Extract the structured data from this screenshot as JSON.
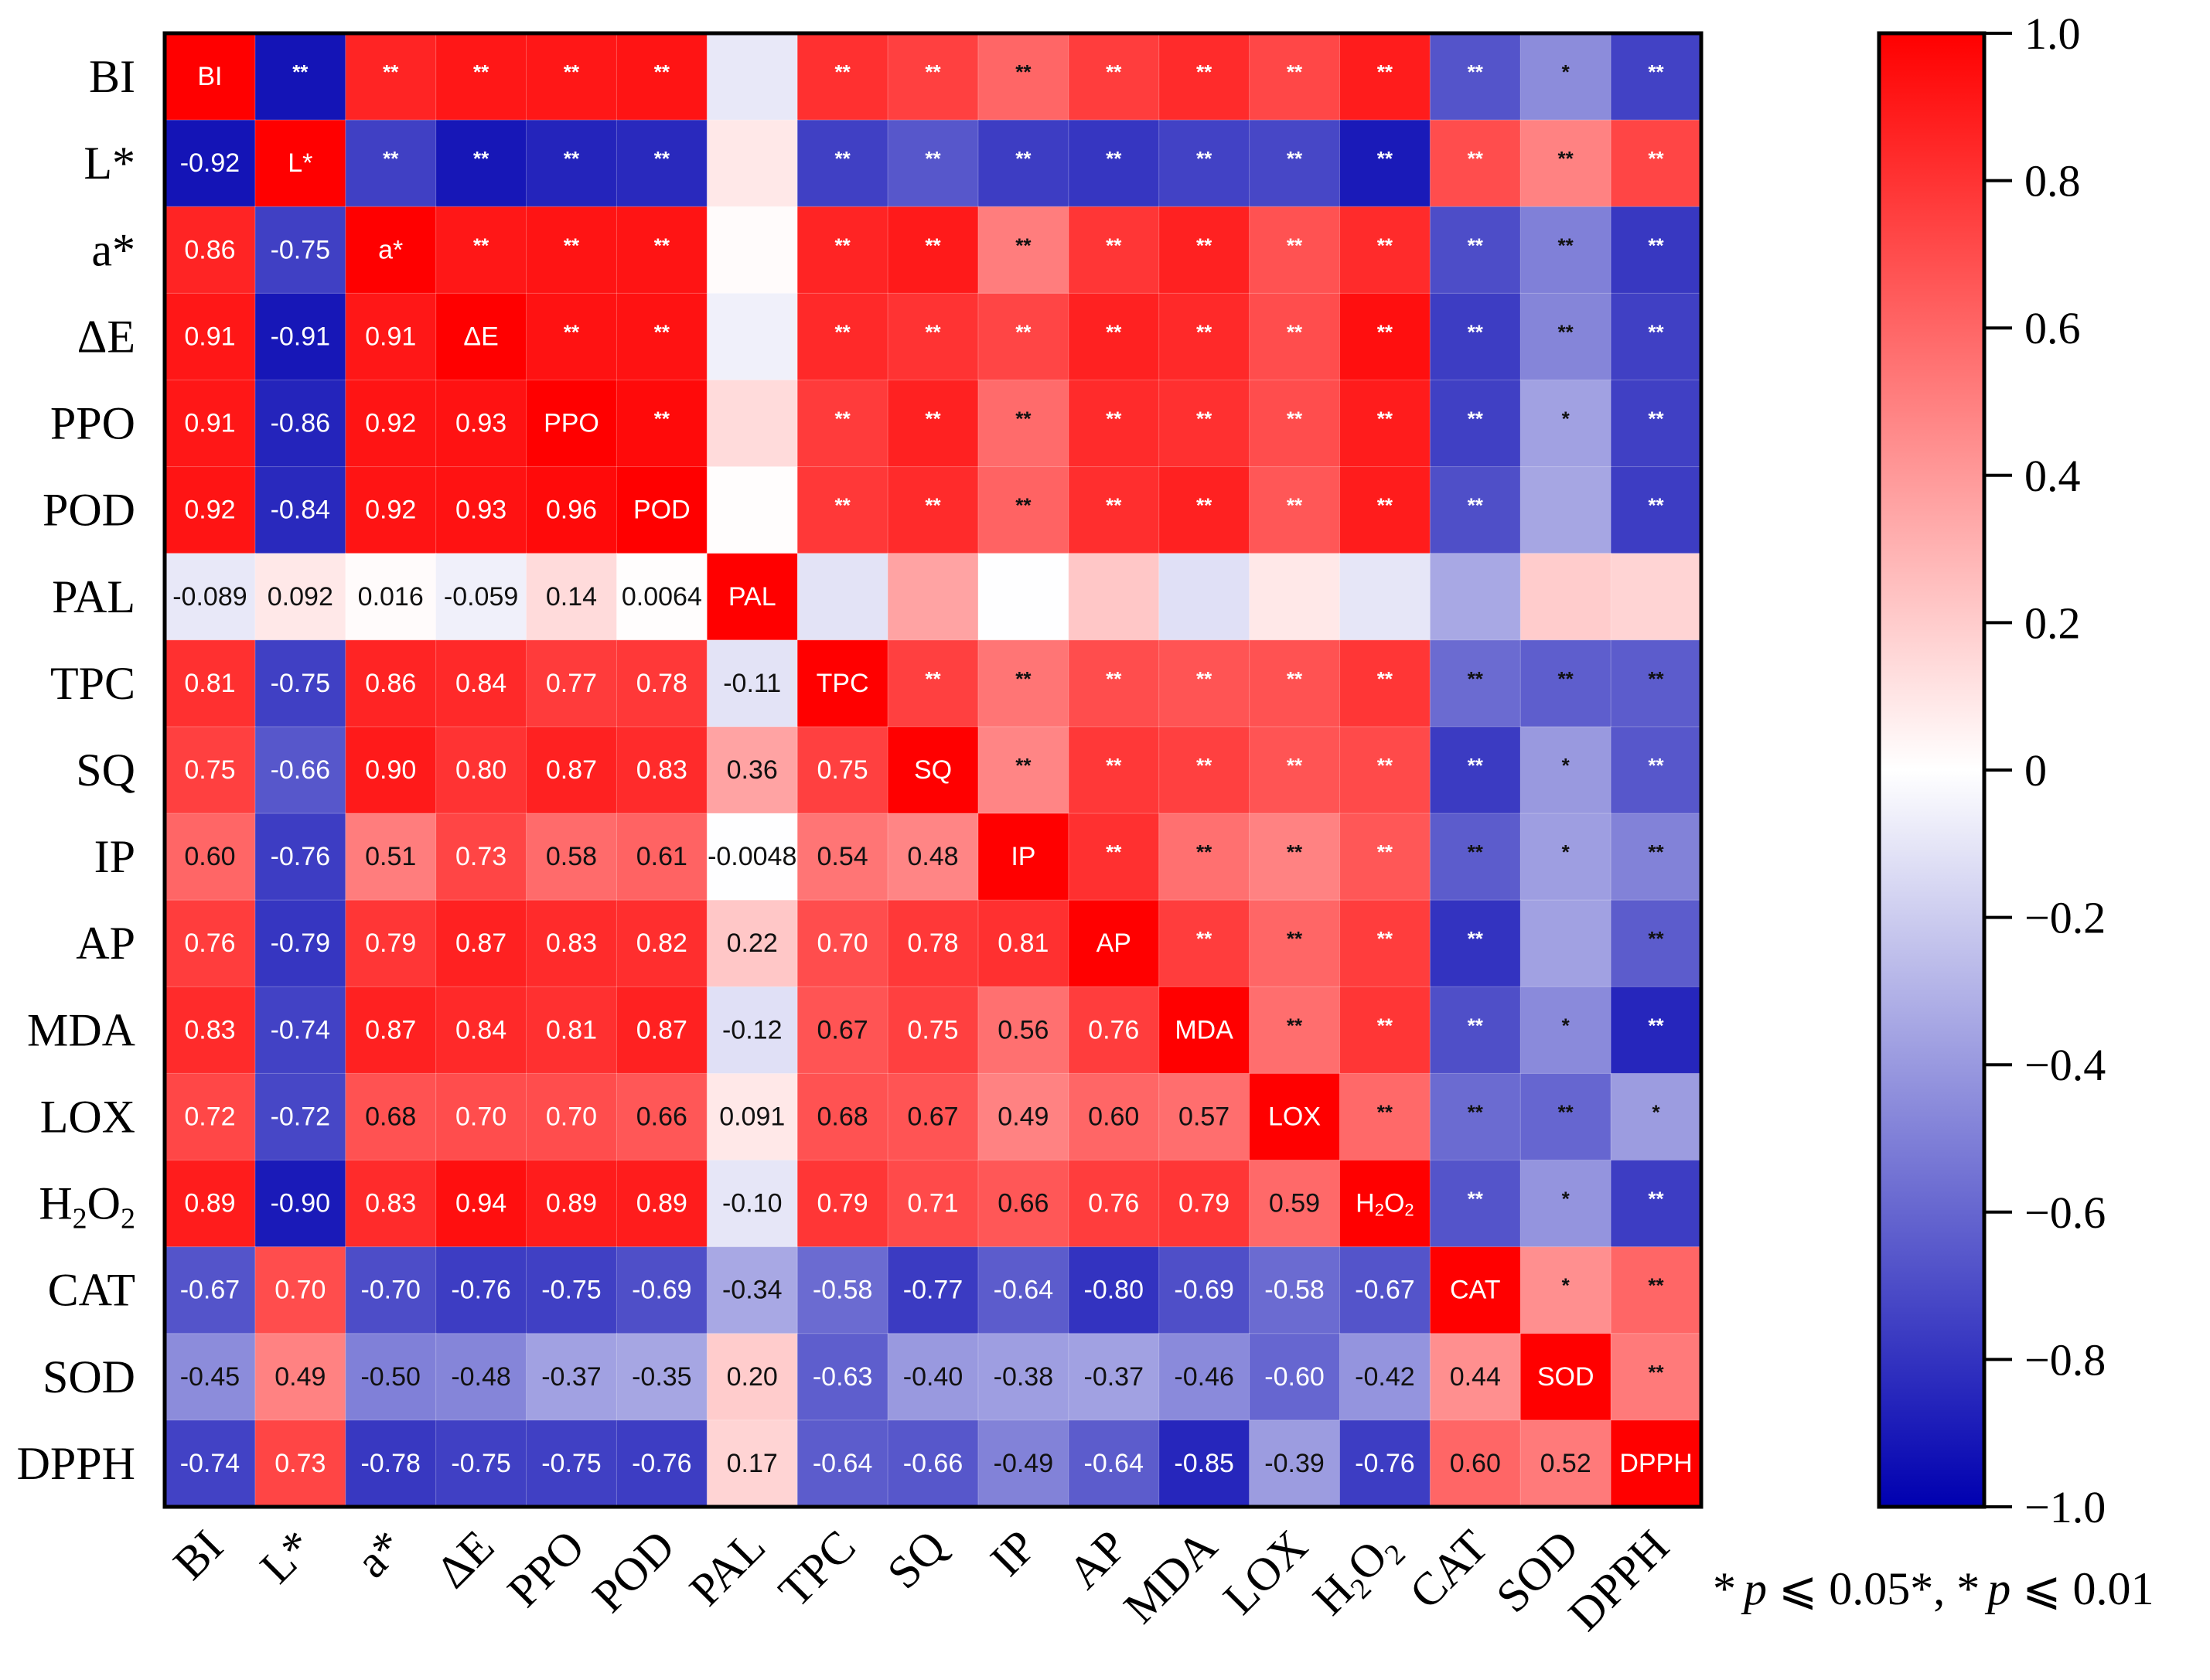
{
  "chart_data": {
    "type": "heatmap",
    "title": "",
    "variables": [
      "BI",
      "L*",
      "a*",
      "ΔE",
      "PPO",
      "POD",
      "PAL",
      "TPC",
      "SQ",
      "IP",
      "AP",
      "MDA",
      "LOX",
      "H2O2",
      "CAT",
      "SOD",
      "DPPH"
    ],
    "variable_display": [
      {
        "main": "BI"
      },
      {
        "main": "L*"
      },
      {
        "main": "a*"
      },
      {
        "main": "ΔE"
      },
      {
        "main": "PPO"
      },
      {
        "main": "POD"
      },
      {
        "main": "PAL"
      },
      {
        "main": "TPC"
      },
      {
        "main": "SQ"
      },
      {
        "main": "IP"
      },
      {
        "main": "AP"
      },
      {
        "main": "MDA"
      },
      {
        "main": "LOX"
      },
      {
        "main": "H",
        "sub1": "2",
        "mid": "O",
        "sub2": "2"
      },
      {
        "main": "CAT"
      },
      {
        "main": "SOD"
      },
      {
        "main": "DPPH"
      }
    ],
    "lower_triangle_note": "Correlation coefficients shown in lower triangle; significance stars in upper triangle; variable names on diagonal",
    "values": [
      [
        1,
        -0.92,
        0.86,
        0.91,
        0.91,
        0.92,
        -0.089,
        0.81,
        0.75,
        0.6,
        0.76,
        0.83,
        0.72,
        0.89,
        -0.67,
        -0.45,
        -0.74
      ],
      [
        -0.92,
        1,
        -0.75,
        -0.91,
        -0.86,
        -0.84,
        0.092,
        -0.75,
        -0.66,
        -0.76,
        -0.79,
        -0.74,
        -0.72,
        -0.9,
        0.7,
        0.49,
        0.73
      ],
      [
        0.86,
        -0.75,
        1,
        0.91,
        0.92,
        0.92,
        0.016,
        0.86,
        0.9,
        0.51,
        0.79,
        0.87,
        0.68,
        0.83,
        -0.7,
        -0.5,
        -0.78
      ],
      [
        0.91,
        -0.91,
        0.91,
        1,
        0.93,
        0.93,
        -0.059,
        0.84,
        0.8,
        0.73,
        0.87,
        0.84,
        0.7,
        0.94,
        -0.76,
        -0.48,
        -0.75
      ],
      [
        0.91,
        -0.86,
        0.92,
        0.93,
        1,
        0.96,
        0.14,
        0.77,
        0.87,
        0.58,
        0.83,
        0.81,
        0.7,
        0.89,
        -0.75,
        -0.37,
        -0.75
      ],
      [
        0.92,
        -0.84,
        0.92,
        0.93,
        0.96,
        1,
        0.0064,
        0.78,
        0.83,
        0.61,
        0.82,
        0.87,
        0.66,
        0.89,
        -0.69,
        -0.35,
        -0.76
      ],
      [
        -0.089,
        0.092,
        0.016,
        -0.059,
        0.14,
        0.0064,
        1,
        -0.11,
        0.36,
        -0.0048,
        0.22,
        -0.12,
        0.091,
        -0.1,
        -0.34,
        0.2,
        0.17
      ],
      [
        0.81,
        -0.75,
        0.86,
        0.84,
        0.77,
        0.78,
        -0.11,
        1,
        0.75,
        0.54,
        0.7,
        0.67,
        0.68,
        0.79,
        -0.58,
        -0.63,
        -0.64
      ],
      [
        0.75,
        -0.66,
        0.9,
        0.8,
        0.87,
        0.83,
        0.36,
        0.75,
        1,
        0.48,
        0.78,
        0.75,
        0.67,
        0.71,
        -0.77,
        -0.4,
        -0.66
      ],
      [
        0.6,
        -0.76,
        0.51,
        0.73,
        0.58,
        0.61,
        -0.0048,
        0.54,
        0.48,
        1,
        0.81,
        0.56,
        0.49,
        0.66,
        -0.64,
        -0.38,
        -0.49
      ],
      [
        0.76,
        -0.79,
        0.79,
        0.87,
        0.83,
        0.82,
        0.22,
        0.7,
        0.78,
        0.81,
        1,
        0.76,
        0.6,
        0.76,
        -0.8,
        -0.37,
        -0.64
      ],
      [
        0.83,
        -0.74,
        0.87,
        0.84,
        0.81,
        0.87,
        -0.12,
        0.67,
        0.75,
        0.56,
        0.76,
        1,
        0.57,
        0.79,
        -0.69,
        -0.46,
        -0.85
      ],
      [
        0.72,
        -0.72,
        0.68,
        0.7,
        0.7,
        0.66,
        0.091,
        0.68,
        0.67,
        0.49,
        0.6,
        0.57,
        1,
        0.59,
        -0.58,
        -0.6,
        -0.39
      ],
      [
        0.89,
        -0.9,
        0.83,
        0.94,
        0.89,
        0.89,
        -0.1,
        0.79,
        0.71,
        0.66,
        0.76,
        0.79,
        0.59,
        1,
        -0.67,
        -0.42,
        -0.76
      ],
      [
        -0.67,
        0.7,
        -0.7,
        -0.76,
        -0.75,
        -0.69,
        -0.34,
        -0.58,
        -0.77,
        -0.64,
        -0.8,
        -0.69,
        -0.58,
        -0.67,
        1,
        0.44,
        0.6
      ],
      [
        -0.45,
        0.49,
        -0.5,
        -0.48,
        -0.37,
        -0.35,
        0.2,
        -0.63,
        -0.4,
        -0.38,
        -0.37,
        -0.46,
        -0.6,
        -0.42,
        0.44,
        1,
        0.52
      ],
      [
        -0.74,
        0.73,
        -0.78,
        -0.75,
        -0.75,
        -0.76,
        0.17,
        -0.64,
        -0.66,
        -0.49,
        -0.64,
        -0.85,
        -0.39,
        -0.76,
        0.6,
        0.52,
        1
      ]
    ],
    "value_labels": [
      [
        "",
        "",
        "",
        "",
        "",
        "",
        "",
        "",
        "",
        "",
        "",
        "",
        "",
        "",
        "",
        "",
        ""
      ],
      [
        "-0.92",
        "",
        "",
        "",
        "",
        "",
        "",
        "",
        "",
        "",
        "",
        "",
        "",
        "",
        "",
        "",
        ""
      ],
      [
        "0.86",
        "-0.75",
        "",
        "",
        "",
        "",
        "",
        "",
        "",
        "",
        "",
        "",
        "",
        "",
        "",
        "",
        ""
      ],
      [
        "0.91",
        "-0.91",
        "0.91",
        "",
        "",
        "",
        "",
        "",
        "",
        "",
        "",
        "",
        "",
        "",
        "",
        "",
        ""
      ],
      [
        "0.91",
        "-0.86",
        "0.92",
        "0.93",
        "",
        "",
        "",
        "",
        "",
        "",
        "",
        "",
        "",
        "",
        "",
        "",
        ""
      ],
      [
        "0.92",
        "-0.84",
        "0.92",
        "0.93",
        "0.96",
        "",
        "",
        "",
        "",
        "",
        "",
        "",
        "",
        "",
        "",
        "",
        ""
      ],
      [
        "-0.089",
        "0.092",
        "0.016",
        "-0.059",
        "0.14",
        "0.0064",
        "",
        "",
        "",
        "",
        "",
        "",
        "",
        "",
        "",
        "",
        ""
      ],
      [
        "0.81",
        "-0.75",
        "0.86",
        "0.84",
        "0.77",
        "0.78",
        "-0.11",
        "",
        "",
        "",
        "",
        "",
        "",
        "",
        "",
        "",
        ""
      ],
      [
        "0.75",
        "-0.66",
        "0.90",
        "0.80",
        "0.87",
        "0.83",
        "0.36",
        "0.75",
        "",
        "",
        "",
        "",
        "",
        "",
        "",
        "",
        ""
      ],
      [
        "0.60",
        "-0.76",
        "0.51",
        "0.73",
        "0.58",
        "0.61",
        "-0.0048",
        "0.54",
        "0.48",
        "",
        "",
        "",
        "",
        "",
        "",
        "",
        ""
      ],
      [
        "0.76",
        "-0.79",
        "0.79",
        "0.87",
        "0.83",
        "0.82",
        "0.22",
        "0.70",
        "0.78",
        "0.81",
        "",
        "",
        "",
        "",
        "",
        "",
        ""
      ],
      [
        "0.83",
        "-0.74",
        "0.87",
        "0.84",
        "0.81",
        "0.87",
        "-0.12",
        "0.67",
        "0.75",
        "0.56",
        "0.76",
        "",
        "",
        "",
        "",
        "",
        ""
      ],
      [
        "0.72",
        "-0.72",
        "0.68",
        "0.70",
        "0.70",
        "0.66",
        "0.091",
        "0.68",
        "0.67",
        "0.49",
        "0.60",
        "0.57",
        "",
        "",
        "",
        "",
        ""
      ],
      [
        "0.89",
        "-0.90",
        "0.83",
        "0.94",
        "0.89",
        "0.89",
        "-0.10",
        "0.79",
        "0.71",
        "0.66",
        "0.76",
        "0.79",
        "0.59",
        "",
        "",
        "",
        ""
      ],
      [
        "-0.67",
        "0.70",
        "-0.70",
        "-0.76",
        "-0.75",
        "-0.69",
        "-0.34",
        "-0.58",
        "-0.77",
        "-0.64",
        "-0.80",
        "-0.69",
        "-0.58",
        "-0.67",
        "",
        "",
        ""
      ],
      [
        "-0.45",
        "0.49",
        "-0.50",
        "-0.48",
        "-0.37",
        "-0.35",
        "0.20",
        "-0.63",
        "-0.40",
        "-0.38",
        "-0.37",
        "-0.46",
        "-0.60",
        "-0.42",
        "0.44",
        "",
        ""
      ],
      [
        "-0.74",
        "0.73",
        "-0.78",
        "-0.75",
        "-0.75",
        "-0.76",
        "0.17",
        "-0.64",
        "-0.66",
        "-0.49",
        "-0.64",
        "-0.85",
        "-0.39",
        "-0.76",
        "0.60",
        "0.52",
        ""
      ]
    ],
    "significance": [
      [
        "",
        "**",
        "**",
        "**",
        "**",
        "**",
        "",
        "**",
        "**",
        "**",
        "**",
        "**",
        "**",
        "**",
        "**",
        "*",
        "**"
      ],
      [
        "",
        "",
        "**",
        "**",
        "**",
        "**",
        "",
        "**",
        "**",
        "**",
        "**",
        "**",
        "**",
        "**",
        "**",
        "**",
        "**"
      ],
      [
        "",
        "",
        "",
        "**",
        "**",
        "**",
        "",
        "**",
        "**",
        "**",
        "**",
        "**",
        "**",
        "**",
        "**",
        "**",
        "**"
      ],
      [
        "",
        "",
        "",
        "",
        "**",
        "**",
        "",
        "**",
        "**",
        "**",
        "**",
        "**",
        "**",
        "**",
        "**",
        "**",
        "**"
      ],
      [
        "",
        "",
        "",
        "",
        "",
        "**",
        "",
        "**",
        "**",
        "**",
        "**",
        "**",
        "**",
        "**",
        "**",
        "*",
        "**"
      ],
      [
        "",
        "",
        "",
        "",
        "",
        "",
        "",
        "**",
        "**",
        "**",
        "**",
        "**",
        "**",
        "**",
        "**",
        "",
        "**"
      ],
      [
        "",
        "",
        "",
        "",
        "",
        "",
        "",
        "",
        "",
        "",
        "",
        "",
        "",
        "",
        "",
        "",
        ""
      ],
      [
        "",
        "",
        "",
        "",
        "",
        "",
        "",
        "",
        "**",
        "**",
        "**",
        "**",
        "**",
        "**",
        "**",
        "**",
        "**"
      ],
      [
        "",
        "",
        "",
        "",
        "",
        "",
        "",
        "",
        "",
        "**",
        "**",
        "**",
        "**",
        "**",
        "**",
        "*",
        "**"
      ],
      [
        "",
        "",
        "",
        "",
        "",
        "",
        "",
        "",
        "",
        "",
        "**",
        "**",
        "**",
        "**",
        "**",
        "*",
        "**"
      ],
      [
        "",
        "",
        "",
        "",
        "",
        "",
        "",
        "",
        "",
        "",
        "",
        "**",
        "**",
        "**",
        "**",
        "",
        "**"
      ],
      [
        "",
        "",
        "",
        "",
        "",
        "",
        "",
        "",
        "",
        "",
        "",
        "",
        "**",
        "**",
        "**",
        "*",
        "**"
      ],
      [
        "",
        "",
        "",
        "",
        "",
        "",
        "",
        "",
        "",
        "",
        "",
        "",
        "",
        "**",
        "**",
        "**",
        "*"
      ],
      [
        "",
        "",
        "",
        "",
        "",
        "",
        "",
        "",
        "",
        "",
        "",
        "",
        "",
        "",
        "**",
        "*",
        "**"
      ],
      [
        "",
        "",
        "",
        "",
        "",
        "",
        "",
        "",
        "",
        "",
        "",
        "",
        "",
        "",
        "",
        "*",
        "**"
      ],
      [
        "",
        "",
        "",
        "",
        "",
        "",
        "",
        "",
        "",
        "",
        "",
        "",
        "",
        "",
        "",
        "",
        "**"
      ],
      [
        "",
        "",
        "",
        "",
        "",
        "",
        "",
        "",
        "",
        "",
        "",
        "",
        "",
        "",
        "",
        "",
        ""
      ]
    ],
    "diagonal_labels": [
      "BI",
      "L*",
      "a*",
      "ΔE",
      "PPO",
      "POD",
      "PAL",
      "TPC",
      "SQ",
      "IP",
      "AP",
      "MDA",
      "LOX",
      "H2O2",
      "CAT",
      "SOD",
      "DPPH"
    ],
    "colorbar": {
      "range": [
        -1.0,
        1.0
      ],
      "ticks": [
        1.0,
        0.8,
        0.6,
        0.4,
        0.2,
        0,
        -0.2,
        -0.4,
        -0.6,
        -0.8,
        -1.0
      ],
      "tick_labels": [
        "1.0",
        "0.8",
        "0.6",
        "0.4",
        "0.2",
        "0",
        "−0.2",
        "−0.4",
        "−0.6",
        "−0.8",
        "−1.0"
      ],
      "low_color": "#0000b0",
      "mid_color": "#ffffff",
      "high_color": "#ff0000"
    },
    "significance_note": {
      "star1": "*",
      "p1_var": "p",
      "p1_text": " ⩽ 0.05*, ",
      "star2": "*",
      "p2_var": "p",
      "p2_text": " ⩽ 0.01"
    },
    "legend_placement": "right",
    "xlabel": "",
    "ylabel": ""
  }
}
